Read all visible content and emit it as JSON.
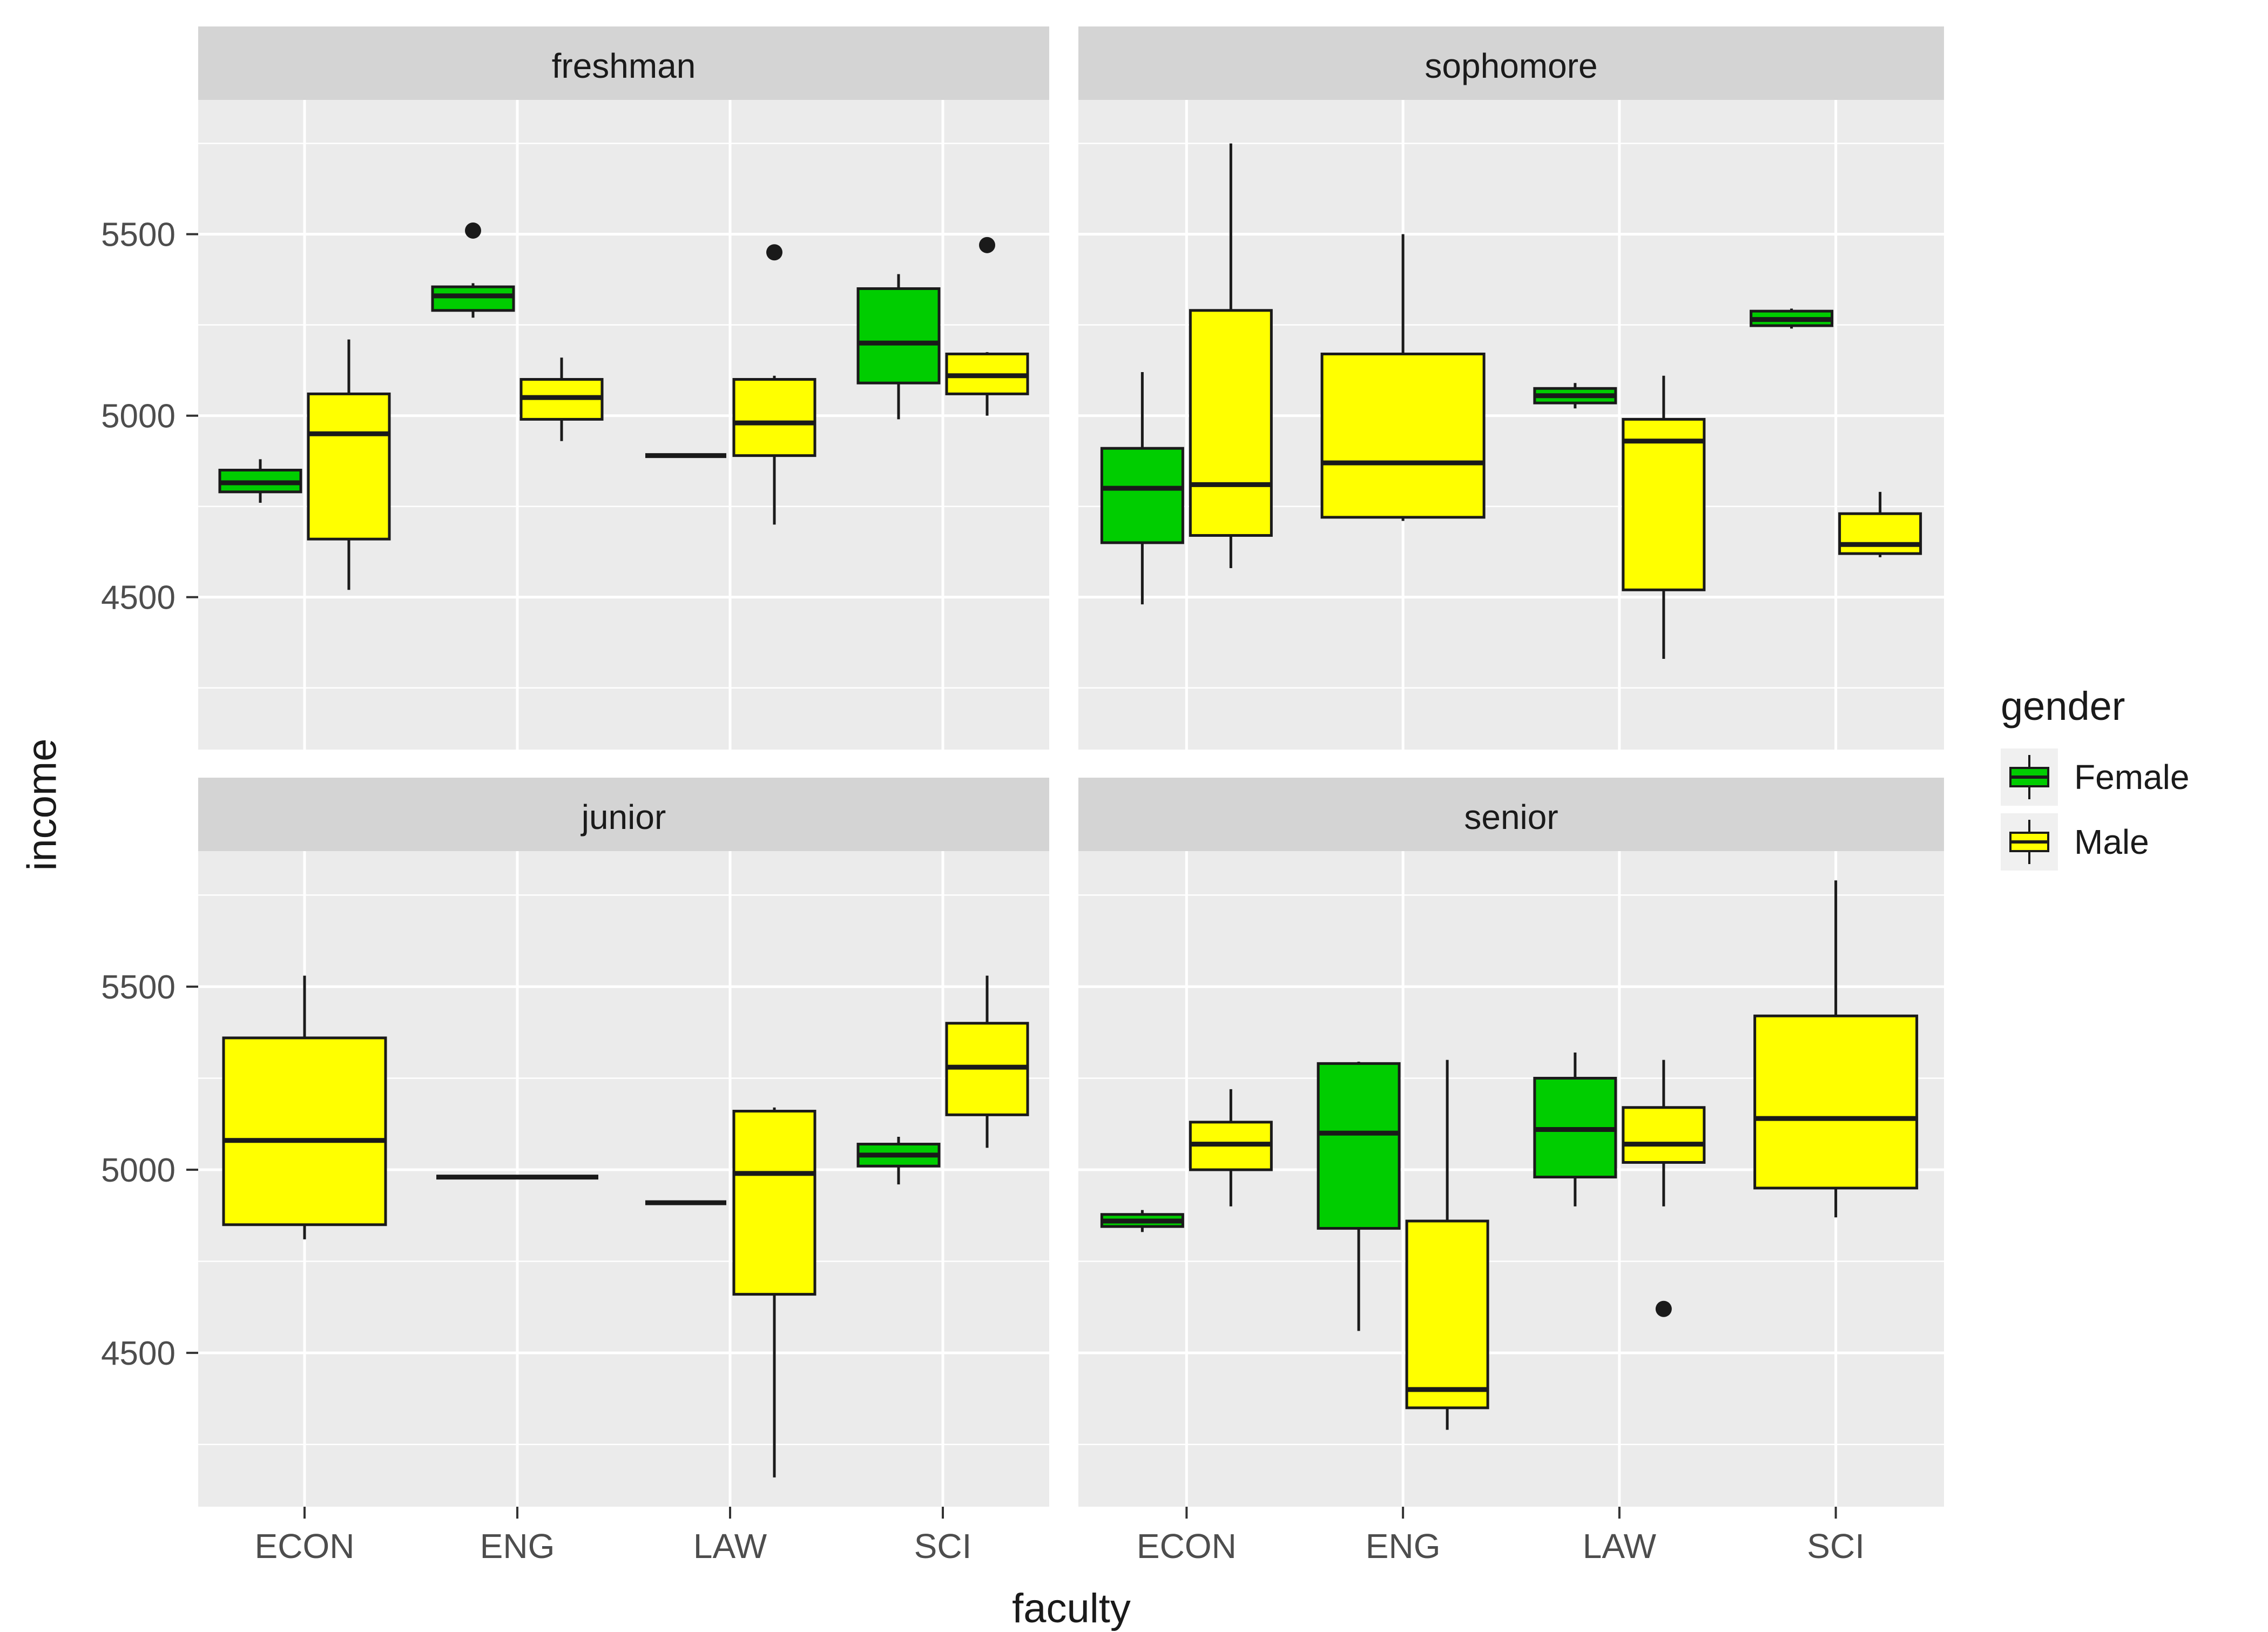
{
  "chart_data": {
    "type": "boxplot",
    "title": "",
    "xlabel": "faculty",
    "ylabel": "income",
    "categories": [
      "ECON",
      "ENG",
      "LAW",
      "SCI"
    ],
    "y_ticks": [
      "4500",
      "5000",
      "5500"
    ],
    "minor_ticks": [
      4250,
      4750,
      5250,
      5750
    ],
    "major_ticks": [
      4500,
      5000,
      5500
    ],
    "ylim": [
      4080,
      5870
    ],
    "grid": "on",
    "legend": {
      "title": "gender",
      "position": "right",
      "items": [
        {
          "label": "Female",
          "color": "#00CD00"
        },
        {
          "label": "Male",
          "color": "#FFFF00"
        }
      ]
    },
    "palette": {
      "panel_bg": "#EBEBEB",
      "strip_bg": "#D4D4D4",
      "grid": "#FFFFFF",
      "outline": "#1A1A1A",
      "tick_text": "#4D4D4D",
      "strip_text": "#1A1A1A",
      "key_bg": "#F0F0F0"
    },
    "facets": [
      {
        "name": "freshman",
        "groups": [
          {
            "faculty": "ECON",
            "gender": "Female",
            "lo": 4760,
            "q1": 4790,
            "med": 4815,
            "q3": 4850,
            "hi": 4880,
            "outliers": []
          },
          {
            "faculty": "ECON",
            "gender": "Male",
            "lo": 4520,
            "q1": 4660,
            "med": 4950,
            "q3": 5060,
            "hi": 5210,
            "outliers": []
          },
          {
            "faculty": "ENG",
            "gender": "Female",
            "lo": 5270,
            "q1": 5290,
            "med": 5330,
            "q3": 5355,
            "hi": 5365,
            "outliers": [
              5510
            ]
          },
          {
            "faculty": "ENG",
            "gender": "Male",
            "lo": 4930,
            "q1": 4990,
            "med": 5050,
            "q3": 5100,
            "hi": 5160,
            "outliers": []
          },
          {
            "faculty": "LAW",
            "gender": "Female",
            "lo": 4890,
            "q1": 4890,
            "med": 4890,
            "q3": 4890,
            "hi": 4890,
            "outliers": []
          },
          {
            "faculty": "LAW",
            "gender": "Male",
            "lo": 4700,
            "q1": 4890,
            "med": 4980,
            "q3": 5100,
            "hi": 5110,
            "outliers": [
              5450
            ]
          },
          {
            "faculty": "SCI",
            "gender": "Female",
            "lo": 4990,
            "q1": 5090,
            "med": 5200,
            "q3": 5350,
            "hi": 5390,
            "outliers": []
          },
          {
            "faculty": "SCI",
            "gender": "Male",
            "lo": 5000,
            "q1": 5060,
            "med": 5110,
            "q3": 5170,
            "hi": 5175,
            "outliers": [
              5470
            ]
          }
        ]
      },
      {
        "name": "sophomore",
        "groups": [
          {
            "faculty": "ECON",
            "gender": "Female",
            "lo": 4480,
            "q1": 4650,
            "med": 4800,
            "q3": 4910,
            "hi": 5120,
            "outliers": []
          },
          {
            "faculty": "ECON",
            "gender": "Male",
            "lo": 4580,
            "q1": 4670,
            "med": 4810,
            "q3": 5290,
            "hi": 5750,
            "outliers": []
          },
          {
            "faculty": "ENG",
            "gender": "Male",
            "lo": 4710,
            "q1": 4720,
            "med": 4870,
            "q3": 5170,
            "hi": 5500,
            "outliers": []
          },
          {
            "faculty": "LAW",
            "gender": "Female",
            "lo": 5020,
            "q1": 5035,
            "med": 5055,
            "q3": 5075,
            "hi": 5090,
            "outliers": []
          },
          {
            "faculty": "LAW",
            "gender": "Male",
            "lo": 4330,
            "q1": 4520,
            "med": 4930,
            "q3": 4990,
            "hi": 5110,
            "outliers": []
          },
          {
            "faculty": "SCI",
            "gender": "Female",
            "lo": 5240,
            "q1": 5248,
            "med": 5265,
            "q3": 5288,
            "hi": 5295,
            "outliers": []
          },
          {
            "faculty": "SCI",
            "gender": "Male",
            "lo": 4610,
            "q1": 4620,
            "med": 4645,
            "q3": 4730,
            "hi": 4790,
            "outliers": []
          }
        ]
      },
      {
        "name": "junior",
        "groups": [
          {
            "faculty": "ECON",
            "gender": "Male",
            "lo": 4810,
            "q1": 4850,
            "med": 5080,
            "q3": 5360,
            "hi": 5530,
            "outliers": []
          },
          {
            "faculty": "ENG",
            "gender": "Male",
            "lo": 4980,
            "q1": 4980,
            "med": 4980,
            "q3": 4980,
            "hi": 4980,
            "outliers": []
          },
          {
            "faculty": "LAW",
            "gender": "Female",
            "lo": 4910,
            "q1": 4910,
            "med": 4910,
            "q3": 4910,
            "hi": 4910,
            "outliers": []
          },
          {
            "faculty": "LAW",
            "gender": "Male",
            "lo": 4160,
            "q1": 4660,
            "med": 4990,
            "q3": 5160,
            "hi": 5170,
            "outliers": []
          },
          {
            "faculty": "SCI",
            "gender": "Female",
            "lo": 4960,
            "q1": 5010,
            "med": 5040,
            "q3": 5070,
            "hi": 5090,
            "outliers": []
          },
          {
            "faculty": "SCI",
            "gender": "Male",
            "lo": 5060,
            "q1": 5150,
            "med": 5280,
            "q3": 5400,
            "hi": 5530,
            "outliers": []
          }
        ]
      },
      {
        "name": "senior",
        "groups": [
          {
            "faculty": "ECON",
            "gender": "Female",
            "lo": 4830,
            "q1": 4845,
            "med": 4860,
            "q3": 4878,
            "hi": 4890,
            "outliers": []
          },
          {
            "faculty": "ECON",
            "gender": "Male",
            "lo": 4900,
            "q1": 5000,
            "med": 5070,
            "q3": 5130,
            "hi": 5220,
            "outliers": []
          },
          {
            "faculty": "ENG",
            "gender": "Female",
            "lo": 4560,
            "q1": 4840,
            "med": 5100,
            "q3": 5290,
            "hi": 5295,
            "outliers": []
          },
          {
            "faculty": "ENG",
            "gender": "Male",
            "lo": 4290,
            "q1": 4350,
            "med": 4400,
            "q3": 4860,
            "hi": 5300,
            "outliers": []
          },
          {
            "faculty": "LAW",
            "gender": "Female",
            "lo": 4900,
            "q1": 4980,
            "med": 5110,
            "q3": 5250,
            "hi": 5320,
            "outliers": []
          },
          {
            "faculty": "LAW",
            "gender": "Male",
            "lo": 4900,
            "q1": 5020,
            "med": 5070,
            "q3": 5170,
            "hi": 5300,
            "outliers": [
              4620
            ]
          },
          {
            "faculty": "SCI",
            "gender": "Male",
            "lo": 4870,
            "q1": 4950,
            "med": 5140,
            "q3": 5420,
            "hi": 5790,
            "outliers": []
          }
        ]
      }
    ]
  }
}
